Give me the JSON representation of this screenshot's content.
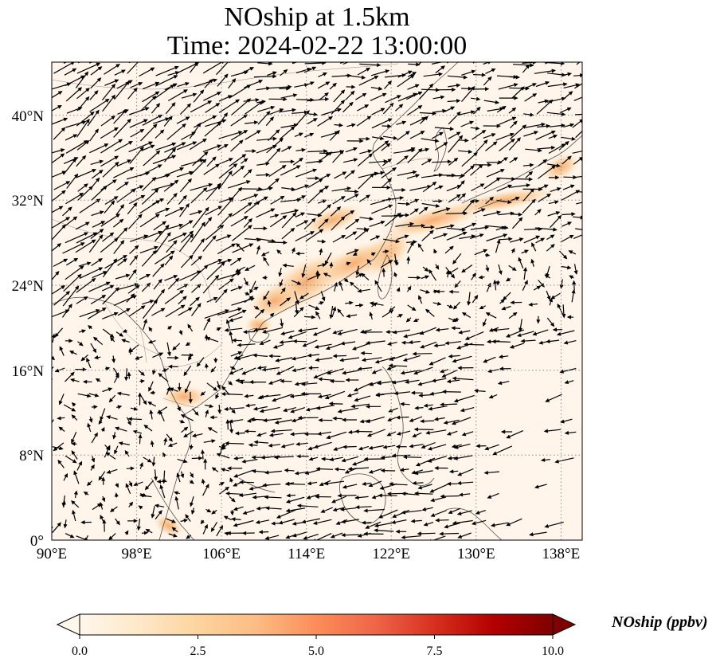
{
  "title": {
    "line1": "NOship at 1.5km",
    "line2": "Time: 2024-02-22 13:00:00"
  },
  "map": {
    "variable": "NOship",
    "level": "1.5km",
    "lon_range": [
      90,
      140
    ],
    "lat_range": [
      0,
      45
    ],
    "lon_ticks": [
      90,
      98,
      106,
      114,
      122,
      130,
      138
    ],
    "lat_ticks": [
      0,
      8,
      16,
      24,
      32,
      40
    ],
    "lon_tick_labels": [
      "90°E",
      "98°E",
      "106°E",
      "114°E",
      "122°E",
      "130°E",
      "138°E"
    ],
    "lat_tick_labels": [
      "0°",
      "8°N",
      "16°N",
      "24°N",
      "32°N",
      "40°N"
    ],
    "gridlines": "dotted",
    "field_background_color": "#fff5ea",
    "wind_vectors": "black arrows"
  },
  "colorbar": {
    "label": "NOship (ppbv)",
    "min": 0.0,
    "max": 10.0,
    "ticks": [
      "0.0",
      "2.5",
      "5.0",
      "7.5",
      "10.0"
    ],
    "colormap": "OrRd",
    "colors": [
      "#fff7ec",
      "#fee8c8",
      "#fdd49e",
      "#fdbb84",
      "#fc8d59",
      "#ef6548",
      "#d7301f",
      "#b30000",
      "#7f0000"
    ],
    "extend": "both"
  }
}
